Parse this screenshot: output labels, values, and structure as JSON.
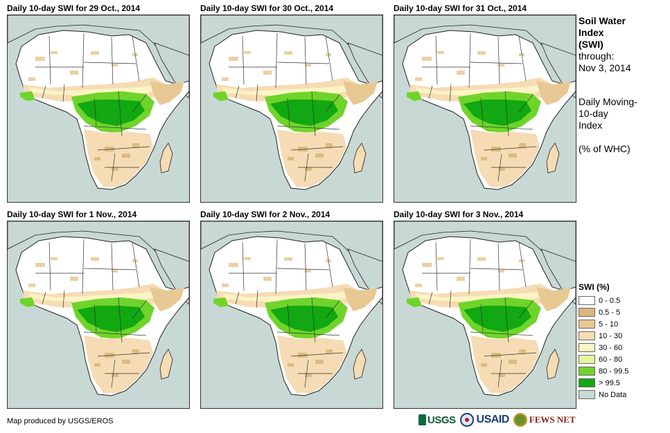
{
  "panels": [
    {
      "title": "Daily 10-day SWI for 29 Oct., 2014"
    },
    {
      "title": "Daily 10-day SWI for 30 Oct., 2014"
    },
    {
      "title": "Daily 10-day SWI for 31 Oct., 2014"
    },
    {
      "title": "Daily 10-day SWI for 1 Nov., 2014"
    },
    {
      "title": "Daily 10-day SWI for 2 Nov., 2014"
    },
    {
      "title": "Daily 10-day SWI for 3 Nov., 2014"
    }
  ],
  "info": {
    "heading": [
      "Soil Water",
      "Index",
      "(SWI)"
    ],
    "through": [
      "through:",
      "Nov 3, 2014"
    ],
    "method": [
      "Daily Moving-",
      "10-day",
      "Index"
    ],
    "unit": "(% of WHC)"
  },
  "legend": {
    "title": "SWI (%)",
    "items": [
      {
        "label": "0 - 0.5",
        "color": "#ffffff"
      },
      {
        "label": "0.5 - 5",
        "color": "#d9b87c"
      },
      {
        "label": "5 - 10",
        "color": "#e8c892"
      },
      {
        "label": "10 - 30",
        "color": "#f6dcb4"
      },
      {
        "label": "30 - 60",
        "color": "#fbf4c4"
      },
      {
        "label": "60 - 80",
        "color": "#e4f7a0"
      },
      {
        "label": "80 - 99.5",
        "color": "#6fd42a"
      },
      {
        "label": "> 99.5",
        "color": "#11a811"
      },
      {
        "label": "No Data",
        "color": "#c8d8d4"
      }
    ]
  },
  "credit": "Map produced by USGS/EROS",
  "logos": {
    "usgs": "USGS",
    "usaid": "USAID",
    "fews": "FEWS NET"
  }
}
